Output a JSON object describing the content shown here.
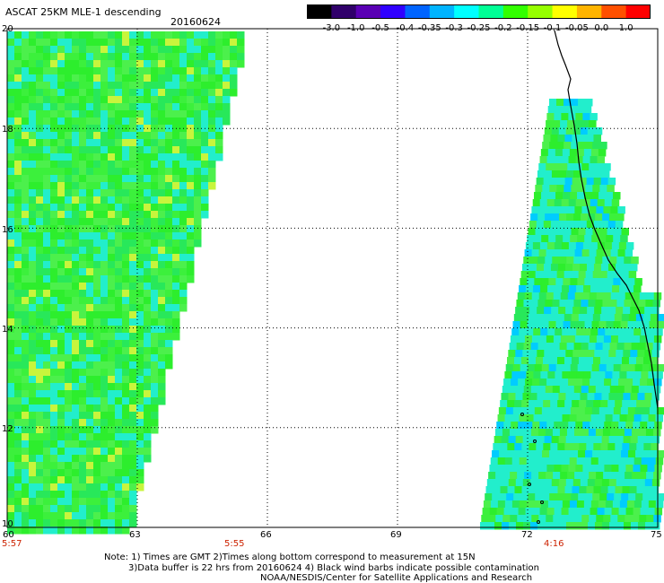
{
  "header": {
    "product_title": "ASCAT 25KM MLE-1 descending",
    "date": "20160624"
  },
  "colorbar": {
    "labels": [
      "-3.0",
      "-1.0",
      "-0.5",
      "-0.4",
      "-0.35",
      "-0.3",
      "-0.25",
      "-0.2",
      "-0.15",
      "-0.1",
      "-0.05",
      "0.0",
      "1.0"
    ],
    "colors": [
      "#000000",
      "#30006a",
      "#5a00b4",
      "#3000ff",
      "#0064ff",
      "#00b4ff",
      "#00ffff",
      "#00ff96",
      "#32ff00",
      "#96ff00",
      "#ffff00",
      "#ffb400",
      "#ff5000",
      "#ff0000"
    ]
  },
  "axes": {
    "lat_labels": [
      "20",
      "18",
      "16",
      "14",
      "12",
      "10"
    ],
    "lon_labels": [
      "60",
      "63",
      "66",
      "69",
      "72",
      "75"
    ],
    "lat_range": [
      10,
      20
    ],
    "lon_range": [
      60,
      75
    ]
  },
  "pass_times": [
    "5:57",
    "5:55",
    "4:16"
  ],
  "notes": [
    "Note: 1) Times are GMT 2)Times along bottom correspond to measurement at 15N",
    "3)Data buffer is 22 hrs from 20160624 4) Black wind barbs indicate possible contamination",
    "NOAA/NESDIS/Center for Satellite Applications and Research"
  ],
  "colors": {
    "swath_green": "#2dee2d",
    "swath_light": "#5af05a",
    "swath_cyan": "#22eecc",
    "grid": "#000000",
    "coast": "#000000",
    "time_label": "#cc2200"
  }
}
